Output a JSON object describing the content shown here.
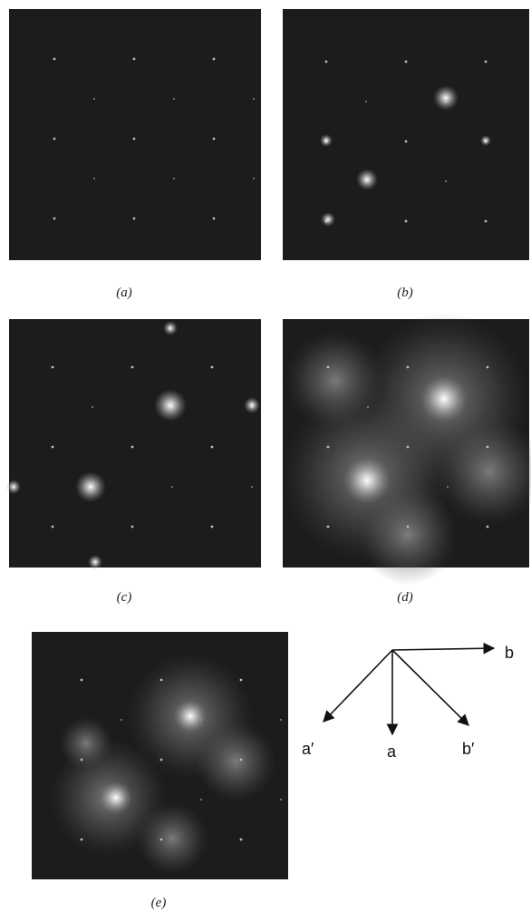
{
  "figure": {
    "panels": [
      {
        "label": "(a)"
      },
      {
        "label": "(b)"
      },
      {
        "label": "(c)"
      },
      {
        "label": "(d)"
      },
      {
        "label": "(e)"
      }
    ],
    "vectors": [
      {
        "label": "b"
      },
      {
        "label": "a′"
      },
      {
        "label": "a"
      },
      {
        "label": "b′"
      }
    ]
  }
}
